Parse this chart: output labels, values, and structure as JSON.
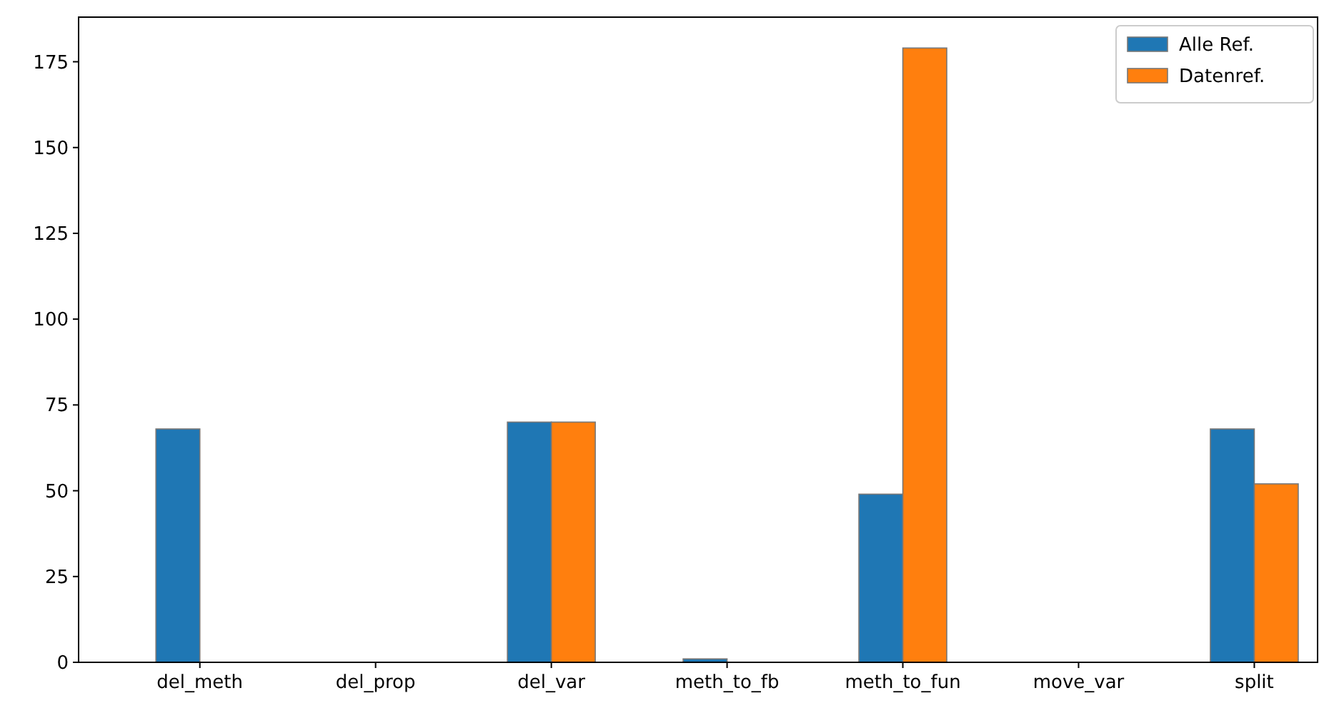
{
  "chart_data": {
    "type": "bar",
    "categories": [
      "del_meth",
      "del_prop",
      "del_var",
      "meth_to_fb",
      "meth_to_fun",
      "move_var",
      "split"
    ],
    "series": [
      {
        "name": "Alle Ref.",
        "color": "#1f77b4",
        "values": [
          68,
          0,
          70,
          1,
          49,
          0,
          68
        ]
      },
      {
        "name": "Datenref.",
        "color": "#ff7f0e",
        "values": [
          0,
          0,
          70,
          0,
          179,
          0,
          52
        ]
      }
    ],
    "ylim": [
      0,
      188
    ],
    "yticks": [
      0,
      25,
      50,
      75,
      100,
      125,
      150,
      175
    ],
    "legend": "top right"
  }
}
